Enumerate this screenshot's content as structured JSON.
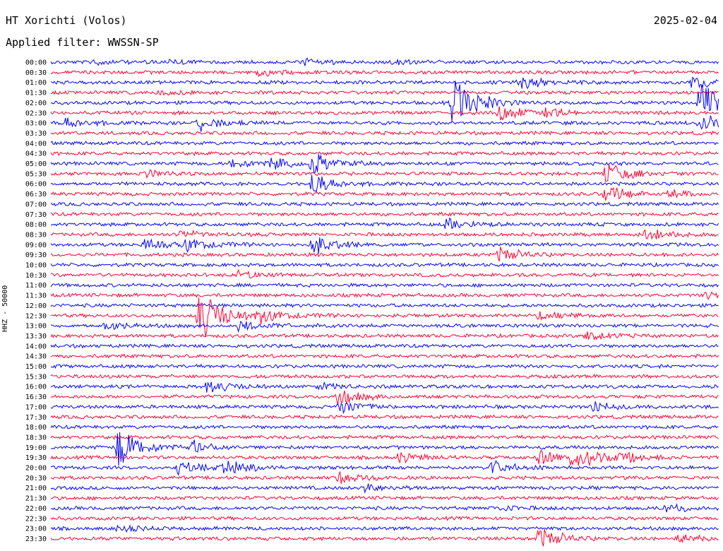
{
  "header": {
    "station": "HT Xorichti (Volos)",
    "date": "2025-02-04",
    "filter": "Applied filter: WWSSN-SP"
  },
  "chart_data": {
    "type": "line",
    "ylabel": "HHZ - 50000",
    "row_labels": [
      "00:00",
      "00:30",
      "01:00",
      "01:30",
      "02:00",
      "02:30",
      "03:00",
      "03:30",
      "04:00",
      "04:30",
      "05:00",
      "05:30",
      "06:00",
      "06:30",
      "07:00",
      "07:30",
      "08:00",
      "08:30",
      "09:00",
      "09:30",
      "10:00",
      "10:30",
      "11:00",
      "11:30",
      "12:00",
      "12:30",
      "13:00",
      "13:30",
      "14:00",
      "14:30",
      "15:00",
      "15:30",
      "16:00",
      "16:30",
      "17:00",
      "17:30",
      "18:00",
      "18:30",
      "19:00",
      "19:30",
      "20:00",
      "20:30",
      "21:00",
      "21:30",
      "22:00",
      "22:30",
      "23:00",
      "23:30"
    ],
    "row_minutes": 30,
    "colors": [
      "#0000ff",
      "#ff0033"
    ],
    "events": [
      {
        "row": 0,
        "t": 0.06,
        "amp": 3
      },
      {
        "row": 0,
        "t": 0.17,
        "amp": 3
      },
      {
        "row": 0,
        "t": 0.38,
        "amp": 4
      },
      {
        "row": 0,
        "t": 0.51,
        "amp": 3
      },
      {
        "row": 1,
        "t": 0.31,
        "amp": 5
      },
      {
        "row": 2,
        "t": 0.7,
        "amp": 10
      },
      {
        "row": 2,
        "t": 0.96,
        "amp": 8
      },
      {
        "row": 3,
        "t": 0.16,
        "amp": 3
      },
      {
        "row": 4,
        "t": 0.6,
        "amp": 40
      },
      {
        "row": 4,
        "t": 0.97,
        "amp": 25
      },
      {
        "row": 5,
        "t": 0.67,
        "amp": 12
      },
      {
        "row": 5,
        "t": 0.74,
        "amp": 6
      },
      {
        "row": 6,
        "t": 0.02,
        "amp": 8
      },
      {
        "row": 6,
        "t": 0.22,
        "amp": 10
      },
      {
        "row": 6,
        "t": 0.97,
        "amp": 15
      },
      {
        "row": 10,
        "t": 0.27,
        "amp": 7
      },
      {
        "row": 10,
        "t": 0.33,
        "amp": 6
      },
      {
        "row": 10,
        "t": 0.39,
        "amp": 16
      },
      {
        "row": 11,
        "t": 0.14,
        "amp": 5
      },
      {
        "row": 11,
        "t": 0.83,
        "amp": 15
      },
      {
        "row": 12,
        "t": 0.39,
        "amp": 14
      },
      {
        "row": 13,
        "t": 0.83,
        "amp": 12
      },
      {
        "row": 13,
        "t": 0.92,
        "amp": 6
      },
      {
        "row": 16,
        "t": 0.59,
        "amp": 8
      },
      {
        "row": 17,
        "t": 0.19,
        "amp": 6
      },
      {
        "row": 17,
        "t": 0.89,
        "amp": 8
      },
      {
        "row": 18,
        "t": 0.14,
        "amp": 6
      },
      {
        "row": 18,
        "t": 0.2,
        "amp": 9
      },
      {
        "row": 18,
        "t": 0.39,
        "amp": 14
      },
      {
        "row": 19,
        "t": 0.67,
        "amp": 10
      },
      {
        "row": 21,
        "t": 0.28,
        "amp": 5
      },
      {
        "row": 23,
        "t": 0.98,
        "amp": 5
      },
      {
        "row": 25,
        "t": 0.22,
        "amp": 40
      },
      {
        "row": 25,
        "t": 0.31,
        "amp": 10
      },
      {
        "row": 25,
        "t": 0.73,
        "amp": 7
      },
      {
        "row": 26,
        "t": 0.08,
        "amp": 6
      },
      {
        "row": 26,
        "t": 0.28,
        "amp": 8
      },
      {
        "row": 27,
        "t": 0.8,
        "amp": 7
      },
      {
        "row": 32,
        "t": 0.23,
        "amp": 10
      },
      {
        "row": 32,
        "t": 0.4,
        "amp": 4
      },
      {
        "row": 33,
        "t": 0.43,
        "amp": 10
      },
      {
        "row": 34,
        "t": 0.43,
        "amp": 10
      },
      {
        "row": 34,
        "t": 0.81,
        "amp": 7
      },
      {
        "row": 38,
        "t": 0.1,
        "amp": 28
      },
      {
        "row": 38,
        "t": 0.21,
        "amp": 8
      },
      {
        "row": 39,
        "t": 0.52,
        "amp": 6
      },
      {
        "row": 39,
        "t": 0.73,
        "amp": 10
      },
      {
        "row": 39,
        "t": 0.78,
        "amp": 16
      },
      {
        "row": 39,
        "t": 0.85,
        "amp": 10
      },
      {
        "row": 40,
        "t": 0.19,
        "amp": 8
      },
      {
        "row": 40,
        "t": 0.26,
        "amp": 10
      },
      {
        "row": 40,
        "t": 0.66,
        "amp": 8
      },
      {
        "row": 41,
        "t": 0.43,
        "amp": 8
      },
      {
        "row": 42,
        "t": 0.47,
        "amp": 6
      },
      {
        "row": 44,
        "t": 0.66,
        "amp": 4
      },
      {
        "row": 44,
        "t": 0.92,
        "amp": 5
      },
      {
        "row": 46,
        "t": 0.1,
        "amp": 4
      },
      {
        "row": 47,
        "t": 0.73,
        "amp": 15
      },
      {
        "row": 47,
        "t": 0.94,
        "amp": 8
      }
    ]
  }
}
